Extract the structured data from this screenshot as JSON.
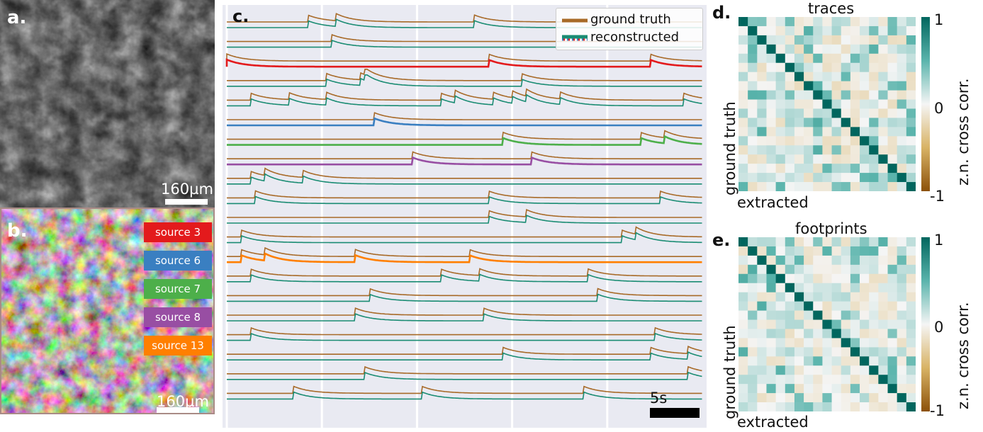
{
  "panels": {
    "a": {
      "letter": "a.",
      "scale_label": "160µm"
    },
    "b": {
      "letter": "b.",
      "scale_label": "160µm",
      "sources": [
        {
          "label": "source 3",
          "color": "#e31a1c"
        },
        {
          "label": "source 6",
          "color": "#3a7fc1"
        },
        {
          "label": "source 7",
          "color": "#4daf4a"
        },
        {
          "label": "source 8",
          "color": "#984ea3"
        },
        {
          "label": "source 13",
          "color": "#ff7f00"
        }
      ]
    },
    "c": {
      "letter": "c.",
      "legend_ground_truth": "ground truth",
      "legend_reconstructed": "reconstructed",
      "time_scale_label": "5s",
      "colors": {
        "ground_truth": "#a86a28",
        "reconstructed": "#1a8c73"
      }
    },
    "d": {
      "letter": "d.",
      "title": "traces",
      "ylabel": "ground truth",
      "xlabel": "extracted",
      "colorbar_label": "z.n. cross corr.",
      "ticks": [
        "1",
        "0",
        "-1"
      ]
    },
    "e": {
      "letter": "e.",
      "title": "footprints",
      "ylabel": "ground truth",
      "xlabel": "extracted",
      "colorbar_label": "z.n. cross corr.",
      "ticks": [
        "1",
        "0",
        "-1"
      ]
    }
  },
  "chart_data": [
    {
      "type": "line",
      "panel": "c",
      "series": [
        {
          "name": "ground truth",
          "color": "#a86a28"
        },
        {
          "name": "reconstructed",
          "color": "#1a8c73"
        }
      ],
      "highlighted_sources": [
        {
          "label": "source 3",
          "color": "#e31a1c",
          "trace_index": 2
        },
        {
          "label": "source 6",
          "color": "#3a7fc1",
          "trace_index": 5
        },
        {
          "label": "source 7",
          "color": "#4daf4a",
          "trace_index": 6
        },
        {
          "label": "source 8",
          "color": "#984ea3",
          "trace_index": 7
        },
        {
          "label": "source 13",
          "color": "#ff7f00",
          "trace_index": 12
        }
      ],
      "n_traces": 20,
      "spike_times": [
        [
          0.17,
          0.23,
          0.52
        ],
        [
          0.22
        ],
        [
          0.0,
          0.55,
          0.89
        ],
        [
          0.21,
          0.28,
          0.29,
          0.62
        ],
        [
          0.05,
          0.13,
          0.21,
          0.45,
          0.48,
          0.56,
          0.6,
          0.63,
          0.7,
          0.96
        ],
        [
          0.31
        ],
        [
          0.58,
          0.87,
          0.92
        ],
        [
          0.39,
          0.64
        ],
        [
          0.05,
          0.08,
          0.16
        ],
        [
          0.06,
          0.55,
          0.91
        ],
        [
          0.55,
          0.63
        ],
        [
          0.03,
          0.83,
          0.86
        ],
        [
          0.03,
          0.08,
          0.27,
          0.51
        ],
        [
          0.05,
          0.45,
          0.53,
          0.76
        ],
        [
          0.3,
          0.78
        ],
        [
          0.27,
          0.54
        ],
        [
          0.05,
          0.9
        ],
        [
          0.58,
          0.89,
          0.97
        ],
        [
          0.29,
          0.97
        ],
        [
          0.14,
          0.41,
          0.75
        ]
      ]
    },
    {
      "type": "heatmap",
      "panel": "d",
      "title": "traces",
      "xlabel": "extracted",
      "ylabel": "ground truth",
      "colorbar": {
        "min": -1,
        "max": 1,
        "label": "z.n. cross corr."
      },
      "size": 19,
      "diagonal": 1
    },
    {
      "type": "heatmap",
      "panel": "e",
      "title": "footprints",
      "xlabel": "extracted",
      "ylabel": "ground truth",
      "colorbar": {
        "min": -1,
        "max": 1,
        "label": "z.n. cross corr."
      },
      "size": 19,
      "diagonal": 1
    }
  ]
}
